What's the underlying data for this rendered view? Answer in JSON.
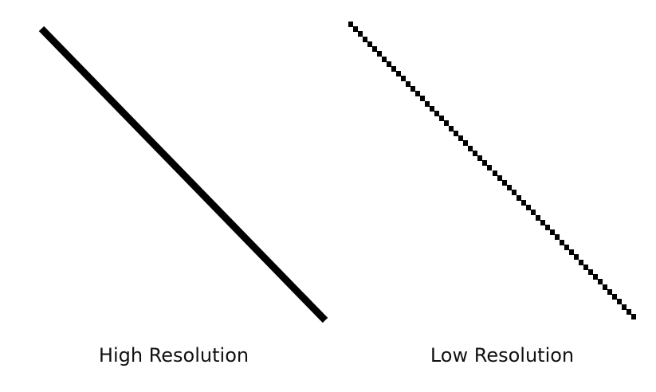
{
  "panels": [
    {
      "caption": "High Resolution",
      "rendering": "smooth-line"
    },
    {
      "caption": "Low Resolution",
      "rendering": "pixelated-staircase-line"
    }
  ],
  "colors": {
    "background": "#ffffff",
    "line": "#000000",
    "text": "#111111"
  }
}
